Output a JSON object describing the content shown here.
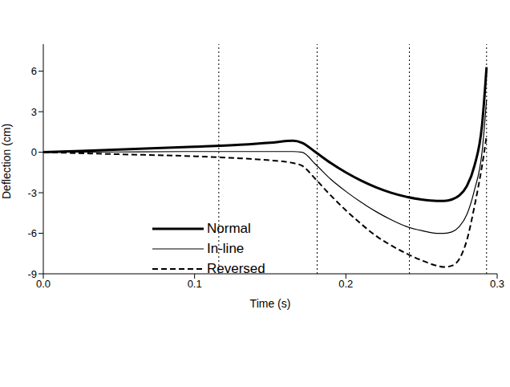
{
  "chart_data": {
    "type": "line",
    "x_label": "Time (s)",
    "y_label": "Deflection (cm)",
    "x": [
      0,
      0.05,
      0.1,
      0.13,
      0.15,
      0.165,
      0.171,
      0.18,
      0.19,
      0.2,
      0.21,
      0.22,
      0.23,
      0.24,
      0.25,
      0.26,
      0.265,
      0.27,
      0.275,
      0.28,
      0.285,
      0.29,
      0.293
    ],
    "series": [
      {
        "name": "Normal",
        "color": "#000000",
        "line_style": "solid",
        "values": [
          0,
          0.2,
          0.4,
          0.55,
          0.7,
          0.85,
          0.7,
          0.0,
          -0.8,
          -1.5,
          -2.1,
          -2.6,
          -3.0,
          -3.3,
          -3.5,
          -3.6,
          -3.6,
          -3.5,
          -3.2,
          -2.5,
          -1.0,
          2.0,
          6.3
        ]
      },
      {
        "name": "In-line",
        "color": "#000000",
        "line_style": "solid",
        "values": [
          0,
          0.02,
          0.05,
          0.05,
          0.05,
          0.05,
          0.0,
          -0.9,
          -2.0,
          -2.9,
          -3.7,
          -4.4,
          -5.0,
          -5.5,
          -5.8,
          -6.0,
          -6.0,
          -5.9,
          -5.5,
          -4.6,
          -2.8,
          0.0,
          3.9
        ]
      },
      {
        "name": "Reversed",
        "color": "#000000",
        "line_style": "dashed",
        "values": [
          0,
          -0.15,
          -0.3,
          -0.45,
          -0.6,
          -0.8,
          -1.0,
          -2.0,
          -3.2,
          -4.3,
          -5.3,
          -6.2,
          -6.9,
          -7.5,
          -8.0,
          -8.4,
          -8.5,
          -8.4,
          -7.9,
          -6.5,
          -4.0,
          -1.0,
          1.2
        ]
      }
    ],
    "reference_x": [
      0.116,
      0.181,
      0.242,
      0.293
    ],
    "xlim": [
      0,
      0.3
    ],
    "xticks": [
      {
        "value": 0,
        "label": "0.0"
      },
      0.1,
      0.2,
      0.3
    ],
    "ylim": [
      -9,
      8
    ],
    "yticks": [
      -9,
      -6,
      -3,
      0,
      3,
      6
    ],
    "legend": "lower left",
    "grid": false
  }
}
